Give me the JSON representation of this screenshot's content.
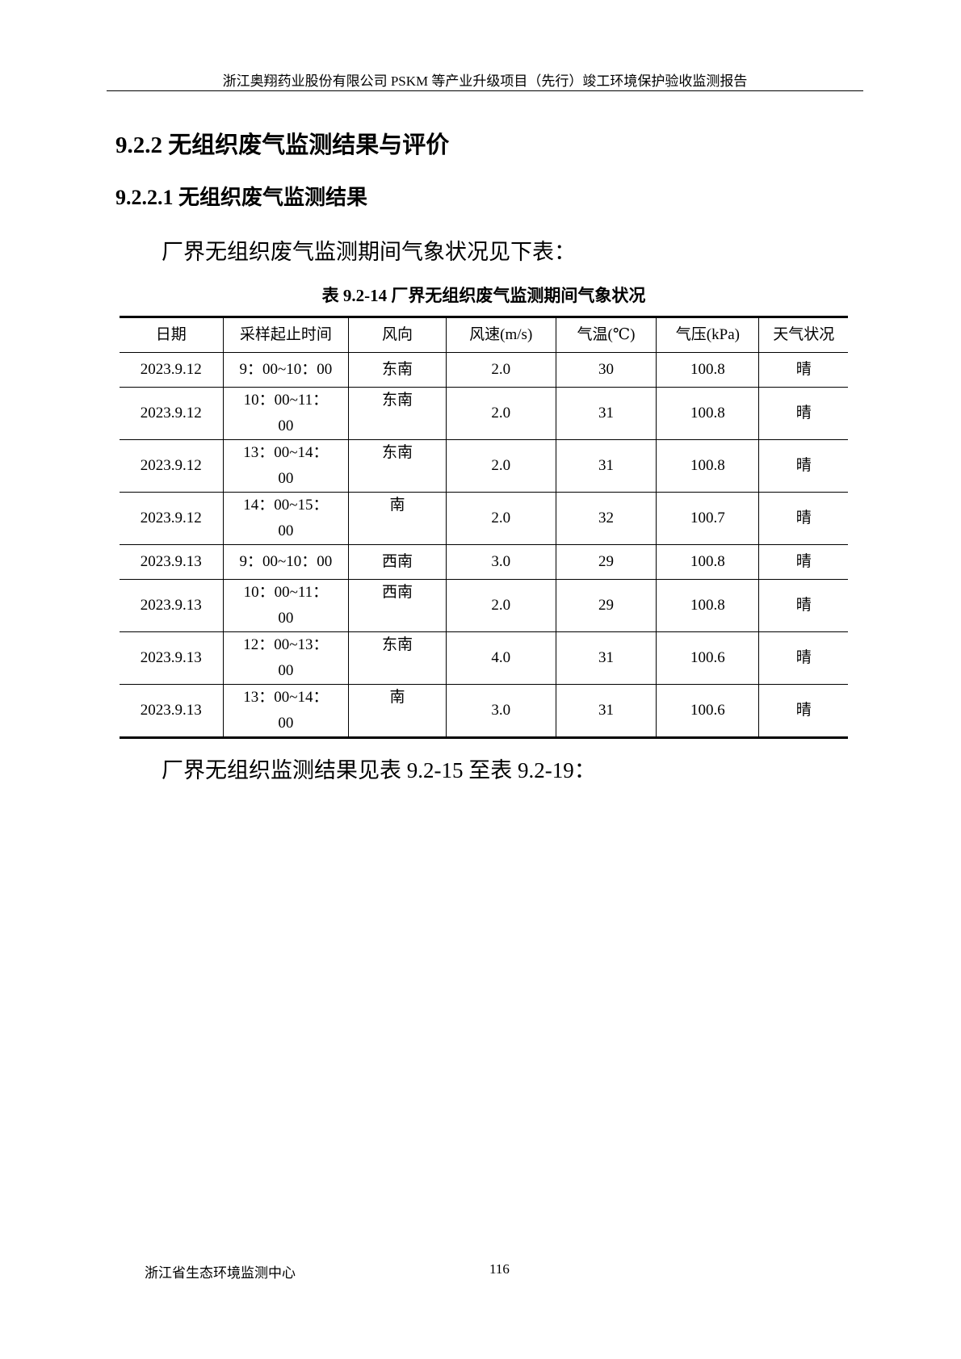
{
  "header": "浙江奥翔药业股份有限公司 PSKM 等产业升级项目（先行）竣工环境保护验收监测报告",
  "section_title": "9.2.2  无组织废气监测结果与评价",
  "subsection_title": "9.2.2.1  无组织废气监测结果",
  "intro": "厂界无组织废气监测期间气象状况见下表：",
  "table": {
    "caption": "表 9.2-14  厂界无组织废气监测期间气象状况",
    "columns": [
      "日期",
      "采样起止时间",
      "风向",
      "风速(m/s)",
      "气温(℃)",
      "气压(kPa)",
      "天气状况"
    ],
    "rows": [
      {
        "date": "2023.9.12",
        "time": "9：00~10：00",
        "dir": "东南",
        "speed": "2.0",
        "temp": "30",
        "pressure": "100.8",
        "weather": "晴",
        "wrap": false
      },
      {
        "date": "2023.9.12",
        "time": "10：00~11：00",
        "dir": "东南",
        "speed": "2.0",
        "temp": "31",
        "pressure": "100.8",
        "weather": "晴",
        "wrap": true
      },
      {
        "date": "2023.9.12",
        "time": "13：00~14：00",
        "dir": "东南",
        "speed": "2.0",
        "temp": "31",
        "pressure": "100.8",
        "weather": "晴",
        "wrap": true
      },
      {
        "date": "2023.9.12",
        "time": "14：00~15：00",
        "dir": "南",
        "speed": "2.0",
        "temp": "32",
        "pressure": "100.7",
        "weather": "晴",
        "wrap": true
      },
      {
        "date": "2023.9.13",
        "time": "9：00~10：00",
        "dir": "西南",
        "speed": "3.0",
        "temp": "29",
        "pressure": "100.8",
        "weather": "晴",
        "wrap": false
      },
      {
        "date": "2023.9.13",
        "time": "10：00~11：00",
        "dir": "西南",
        "speed": "2.0",
        "temp": "29",
        "pressure": "100.8",
        "weather": "晴",
        "wrap": true
      },
      {
        "date": "2023.9.13",
        "time": "12：00~13：00",
        "dir": "东南",
        "speed": "4.0",
        "temp": "31",
        "pressure": "100.6",
        "weather": "晴",
        "wrap": true
      },
      {
        "date": "2023.9.13",
        "time": "13：00~14：00",
        "dir": "南",
        "speed": "3.0",
        "temp": "31",
        "pressure": "100.6",
        "weather": "晴",
        "wrap": true
      }
    ]
  },
  "outro": "厂界无组织监测结果见表 9.2-15 至表 9.2-19：",
  "footer": {
    "org": "浙江省生态环境监测中心",
    "page": "116"
  }
}
